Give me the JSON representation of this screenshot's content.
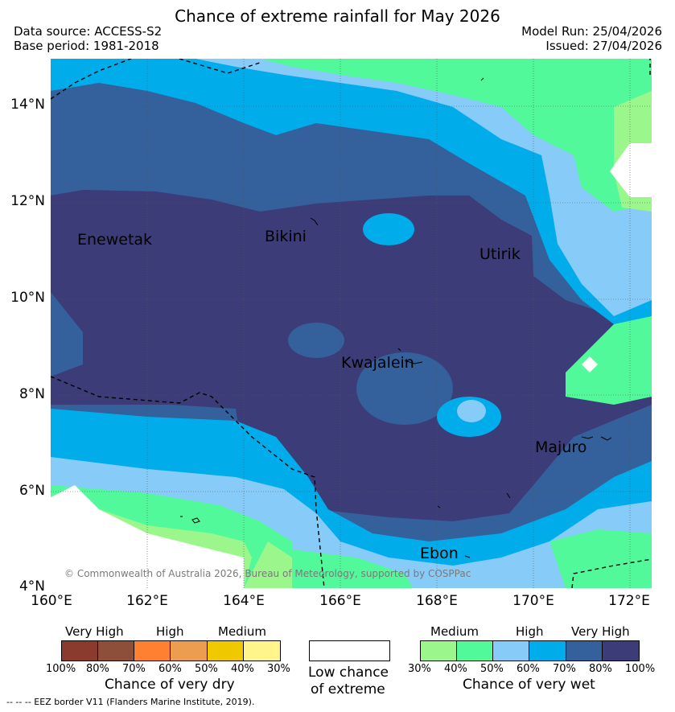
{
  "header": {
    "title": "Chance of extreme rainfall for May 2026",
    "data_source": "Data source: ACCESS-S2",
    "base_period": "Base period: 1981-2018",
    "model_run": "Model Run: 25/04/2026",
    "issued": "Issued: 27/04/2026"
  },
  "map": {
    "lat_labels": [
      "14°N",
      "12°N",
      "10°N",
      "8°N",
      "6°N",
      "4°N"
    ],
    "lon_labels": [
      "160°E",
      "162°E",
      "164°E",
      "166°E",
      "168°E",
      "170°E",
      "172°E"
    ],
    "places": {
      "enewetak": "Enewetak",
      "bikini": "Bikini",
      "utirik": "Utirik",
      "kwajalein": "Kwajalein",
      "majuro": "Majuro",
      "ebon": "Ebon"
    },
    "copyright": "© Commonwealth of Australia 2026, Bureau of Meteorology, supported by COSPPac"
  },
  "legend": {
    "dry": {
      "headers": [
        "Very High",
        "High",
        "Medium"
      ],
      "colors": [
        "#8b3a2e",
        "#8e4f3a",
        "#ff8030",
        "#ec9d50",
        "#f0c800",
        "#fff58a"
      ],
      "ticks": [
        "100%",
        "80%",
        "70%",
        "60%",
        "50%",
        "40%",
        "30%"
      ],
      "caption": "Chance of very dry"
    },
    "low": {
      "color": "#ffffff",
      "caption_line1": "Low chance",
      "caption_line2": "of extreme"
    },
    "wet": {
      "headers": [
        "Medium",
        "High",
        "Very High"
      ],
      "colors": [
        "#9bf78c",
        "#52f99a",
        "#87cbf9",
        "#00adea",
        "#34609c",
        "#3c3c78"
      ],
      "ticks": [
        "30%",
        "40%",
        "50%",
        "60%",
        "70%",
        "80%",
        "100%"
      ],
      "caption": "Chance of very wet"
    },
    "footnote": "--  --  -- EEZ border V11 (Flanders Marine Institute, 2019)."
  }
}
